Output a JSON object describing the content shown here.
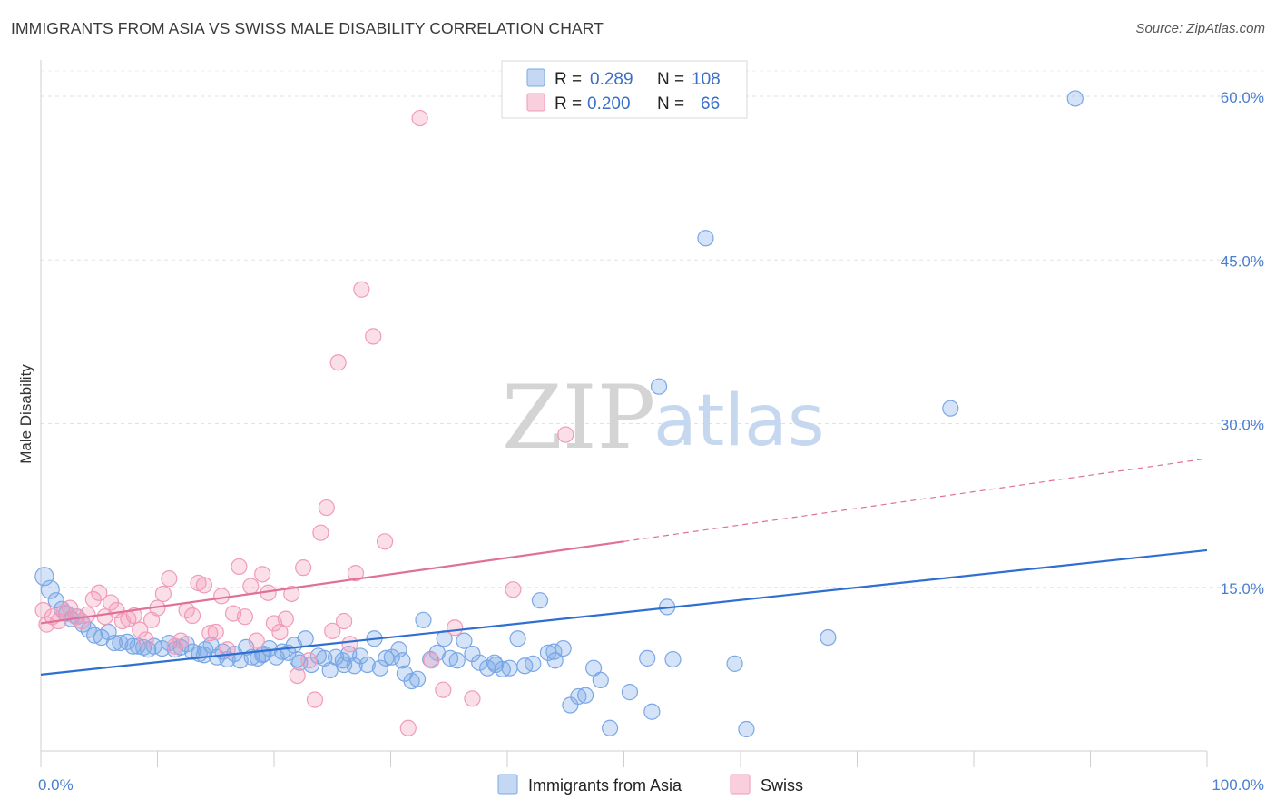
{
  "header": {
    "title": "IMMIGRANTS FROM ASIA VS SWISS MALE DISABILITY CORRELATION CHART",
    "source": "Source: ZipAtlas.com"
  },
  "watermark": {
    "zip": "ZIP",
    "atlas": "atlas"
  },
  "stats_legend": {
    "r_label": "R =",
    "n_label": "N =",
    "rows": [
      {
        "r": "0.289",
        "n": "108",
        "color": "#7aa7e6"
      },
      {
        "r": "0.200",
        "n": "66",
        "color": "#f29ab8"
      }
    ]
  },
  "chart_data": {
    "type": "scatter",
    "title": "IMMIGRANTS FROM ASIA VS SWISS MALE DISABILITY CORRELATION CHART",
    "ylabel": "Male Disability",
    "xlabel": "",
    "xlim": [
      0,
      100
    ],
    "ylim": [
      0,
      63
    ],
    "x_tick_labels": {
      "left": "0.0%",
      "right": "100.0%"
    },
    "y_ticks": [
      {
        "value": 15,
        "label": "15.0%"
      },
      {
        "value": 30,
        "label": "30.0%"
      },
      {
        "value": 45,
        "label": "45.0%"
      },
      {
        "value": 60,
        "label": "60.0%"
      }
    ],
    "grid": true,
    "legend_position": "bottom-center",
    "series": [
      {
        "name": "Immigrants from Asia",
        "color": "#7aa7e6",
        "line_color": "#2e6fd1",
        "trend": {
          "x0": 0,
          "y0": 7.0,
          "x1": 100,
          "y1": 18.4
        },
        "points": [
          [
            0.3,
            16.0
          ],
          [
            0.8,
            14.8
          ],
          [
            1.3,
            13.8
          ],
          [
            1.8,
            13.0
          ],
          [
            2.2,
            12.6
          ],
          [
            2.6,
            12.1
          ],
          [
            3.1,
            12.3
          ],
          [
            3.6,
            11.6
          ],
          [
            4.1,
            11.1
          ],
          [
            4.6,
            10.6
          ],
          [
            5.2,
            10.4
          ],
          [
            5.8,
            10.9
          ],
          [
            6.3,
            9.9
          ],
          [
            6.8,
            9.9
          ],
          [
            7.4,
            10.0
          ],
          [
            7.9,
            9.6
          ],
          [
            8.3,
            9.6
          ],
          [
            8.8,
            9.5
          ],
          [
            9.2,
            9.3
          ],
          [
            9.7,
            9.6
          ],
          [
            10.4,
            9.4
          ],
          [
            11.0,
            9.9
          ],
          [
            11.5,
            9.3
          ],
          [
            12.0,
            9.5
          ],
          [
            12.5,
            9.8
          ],
          [
            13.0,
            9.1
          ],
          [
            13.6,
            8.9
          ],
          [
            14.1,
            9.3
          ],
          [
            14.6,
            9.7
          ],
          [
            15.1,
            8.6
          ],
          [
            15.6,
            9.1
          ],
          [
            16.0,
            8.4
          ],
          [
            16.6,
            8.9
          ],
          [
            17.1,
            8.3
          ],
          [
            17.6,
            9.5
          ],
          [
            18.1,
            8.6
          ],
          [
            18.6,
            8.5
          ],
          [
            19.1,
            8.9
          ],
          [
            19.6,
            9.4
          ],
          [
            20.2,
            8.6
          ],
          [
            20.7,
            9.1
          ],
          [
            21.2,
            9.0
          ],
          [
            21.7,
            9.7
          ],
          [
            22.2,
            8.1
          ],
          [
            22.7,
            10.3
          ],
          [
            23.2,
            7.9
          ],
          [
            23.8,
            8.7
          ],
          [
            24.3,
            8.5
          ],
          [
            24.8,
            7.4
          ],
          [
            25.3,
            8.6
          ],
          [
            25.9,
            8.3
          ],
          [
            26.4,
            8.9
          ],
          [
            26.9,
            7.8
          ],
          [
            27.4,
            8.7
          ],
          [
            28.0,
            7.9
          ],
          [
            28.6,
            10.3
          ],
          [
            29.1,
            7.6
          ],
          [
            29.6,
            8.5
          ],
          [
            30.1,
            8.6
          ],
          [
            30.7,
            9.3
          ],
          [
            31.2,
            7.1
          ],
          [
            31.8,
            6.4
          ],
          [
            32.3,
            6.6
          ],
          [
            32.8,
            12.0
          ],
          [
            33.4,
            8.4
          ],
          [
            34.0,
            9.0
          ],
          [
            34.6,
            10.3
          ],
          [
            35.1,
            8.5
          ],
          [
            35.7,
            8.3
          ],
          [
            36.3,
            10.1
          ],
          [
            37.0,
            8.9
          ],
          [
            37.6,
            8.1
          ],
          [
            38.3,
            7.6
          ],
          [
            38.9,
            8.1
          ],
          [
            39.6,
            7.5
          ],
          [
            40.2,
            7.6
          ],
          [
            40.9,
            10.3
          ],
          [
            41.5,
            7.8
          ],
          [
            42.2,
            8.0
          ],
          [
            42.8,
            13.8
          ],
          [
            43.5,
            9.0
          ],
          [
            44.1,
            8.3
          ],
          [
            44.8,
            9.4
          ],
          [
            45.4,
            4.2
          ],
          [
            46.1,
            5.0
          ],
          [
            46.7,
            5.1
          ],
          [
            47.4,
            7.6
          ],
          [
            48.0,
            6.5
          ],
          [
            48.8,
            2.1
          ],
          [
            50.5,
            5.4
          ],
          [
            52.0,
            8.5
          ],
          [
            52.4,
            3.6
          ],
          [
            53.0,
            33.4
          ],
          [
            53.7,
            13.2
          ],
          [
            54.2,
            8.4
          ],
          [
            57.0,
            47.0
          ],
          [
            59.5,
            8.0
          ],
          [
            60.5,
            2.0
          ],
          [
            67.5,
            10.4
          ],
          [
            78.0,
            31.4
          ],
          [
            88.7,
            59.8
          ],
          [
            26.0,
            7.9
          ],
          [
            39.0,
            7.9
          ],
          [
            44.0,
            9.1
          ],
          [
            31.0,
            8.3
          ],
          [
            22.0,
            8.4
          ],
          [
            19.0,
            8.8
          ],
          [
            14.0,
            8.8
          ]
        ]
      },
      {
        "name": "Swiss",
        "color": "#f29ab8",
        "line_color": "#e0709a",
        "trend": {
          "x0": 0,
          "y0": 11.7,
          "x1": 50,
          "y1": 19.2,
          "x_ext": 100,
          "y_ext": 26.8
        },
        "points": [
          [
            0.2,
            12.9
          ],
          [
            0.5,
            11.6
          ],
          [
            1.0,
            12.3
          ],
          [
            1.5,
            11.9
          ],
          [
            2.0,
            12.7
          ],
          [
            2.5,
            13.1
          ],
          [
            3.0,
            12.3
          ],
          [
            3.5,
            11.9
          ],
          [
            4.0,
            12.5
          ],
          [
            4.5,
            13.9
          ],
          [
            5.0,
            14.5
          ],
          [
            5.5,
            12.3
          ],
          [
            6.0,
            13.6
          ],
          [
            6.5,
            12.9
          ],
          [
            7.0,
            11.9
          ],
          [
            7.5,
            12.1
          ],
          [
            8.0,
            12.4
          ],
          [
            8.5,
            11.1
          ],
          [
            9.0,
            10.2
          ],
          [
            9.5,
            12.0
          ],
          [
            10.0,
            13.1
          ],
          [
            10.5,
            14.4
          ],
          [
            11.0,
            15.8
          ],
          [
            11.5,
            9.6
          ],
          [
            12.0,
            10.1
          ],
          [
            12.5,
            12.9
          ],
          [
            13.0,
            12.4
          ],
          [
            13.5,
            15.4
          ],
          [
            14.0,
            15.2
          ],
          [
            14.5,
            10.8
          ],
          [
            15.0,
            10.9
          ],
          [
            15.5,
            14.2
          ],
          [
            16.0,
            9.3
          ],
          [
            16.5,
            12.6
          ],
          [
            17.0,
            16.9
          ],
          [
            17.5,
            12.3
          ],
          [
            18.0,
            15.1
          ],
          [
            18.5,
            10.1
          ],
          [
            19.0,
            16.2
          ],
          [
            19.5,
            14.5
          ],
          [
            20.0,
            11.7
          ],
          [
            20.5,
            10.9
          ],
          [
            21.0,
            12.1
          ],
          [
            21.5,
            14.4
          ],
          [
            22.0,
            6.9
          ],
          [
            22.5,
            16.8
          ],
          [
            23.0,
            8.3
          ],
          [
            23.5,
            4.7
          ],
          [
            24.0,
            20.0
          ],
          [
            24.5,
            22.3
          ],
          [
            25.0,
            11.0
          ],
          [
            25.5,
            35.6
          ],
          [
            26.0,
            11.9
          ],
          [
            26.5,
            9.8
          ],
          [
            27.0,
            16.3
          ],
          [
            27.5,
            42.3
          ],
          [
            28.5,
            38.0
          ],
          [
            29.5,
            19.2
          ],
          [
            31.5,
            2.1
          ],
          [
            32.5,
            58.0
          ],
          [
            33.5,
            8.3
          ],
          [
            34.5,
            5.6
          ],
          [
            35.5,
            11.3
          ],
          [
            37.0,
            4.8
          ],
          [
            40.5,
            14.8
          ],
          [
            45.0,
            29.0
          ]
        ]
      }
    ]
  },
  "bottom_legend": [
    {
      "label": "Immigrants from Asia",
      "color": "#7aa7e6"
    },
    {
      "label": "Swiss",
      "color": "#f29ab8"
    }
  ]
}
